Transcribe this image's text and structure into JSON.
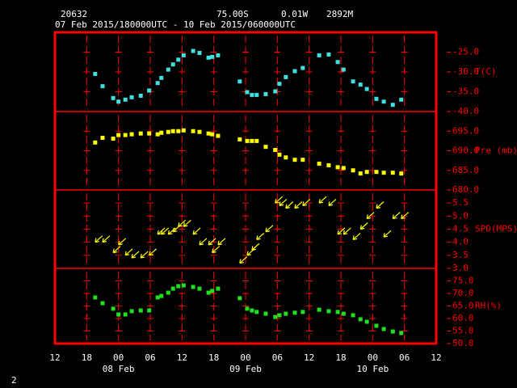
{
  "header": {
    "station": "20632",
    "latitude": "75.00S",
    "longitude": "0.01W",
    "elevation": "2892M",
    "period": "07 Feb 2015/180000UTC - 10 Feb 2015/060000UTC"
  },
  "page_number": "2",
  "chart_data": [
    {
      "type": "scatter",
      "ylabel": "T(C)",
      "color": "#40e0e0",
      "x": [
        7.6,
        9,
        11,
        12,
        13.3,
        14.5,
        16.2,
        17.8,
        19.4,
        20.1,
        21.4,
        22.3,
        23.3,
        24.3,
        26.1,
        27.3,
        29,
        29.7,
        30.8,
        34.9,
        36.3,
        37.2,
        38.1,
        39.8,
        41.6,
        42.4,
        43.6,
        45.3,
        46.8,
        49.9,
        51.7,
        53.4,
        54.5,
        56.3,
        57.7,
        58.9,
        60.7,
        62.1,
        63.8,
        65.4
      ],
      "values": [
        -30.5,
        -33.6,
        -36.6,
        -37.5,
        -37.0,
        -36.4,
        -36.0,
        -34.7,
        -32.8,
        -31.5,
        -29.4,
        -28.1,
        -26.9,
        -25.8,
        -24.7,
        -25.2,
        -26.4,
        -26.2,
        -25.8,
        -32.4,
        -35.1,
        -35.8,
        -35.8,
        -35.6,
        -34.9,
        -33.0,
        -31.3,
        -29.8,
        -29.0,
        -25.8,
        -25.6,
        -27.5,
        -29.4,
        -32.4,
        -33.2,
        -34.3,
        -36.8,
        -37.5,
        -38.3,
        -37.0
      ],
      "ylim": [
        -40,
        -20
      ],
      "yticks": [
        {
          "value": -25,
          "label": "-25.0"
        },
        {
          "value": -30,
          "label": "-30.0"
        },
        {
          "value": -35,
          "label": "-35.0"
        },
        {
          "value": -40,
          "label": "-40.0"
        }
      ]
    },
    {
      "type": "scatter",
      "ylabel": "Pre (mb)",
      "color": "#ffff00",
      "x": [
        7.6,
        9,
        11,
        12,
        13.3,
        14.5,
        16.2,
        17.8,
        19.4,
        20.1,
        21.4,
        22.3,
        23.3,
        24.3,
        26.1,
        27.3,
        29,
        29.7,
        30.8,
        34.9,
        36.3,
        37.2,
        38.1,
        39.8,
        41.6,
        42.4,
        43.6,
        45.3,
        46.8,
        49.9,
        51.7,
        53.4,
        54.5,
        56.3,
        57.7,
        58.9,
        60.7,
        62.1,
        63.8,
        65.4
      ],
      "values": [
        692.1,
        693.3,
        693.1,
        694.0,
        694.0,
        694.2,
        694.4,
        694.4,
        694.2,
        694.6,
        694.8,
        695.0,
        695.0,
        695.2,
        695.0,
        694.8,
        694.4,
        694.2,
        693.8,
        692.9,
        692.5,
        692.5,
        692.5,
        691.0,
        690.2,
        689.0,
        688.3,
        687.7,
        687.7,
        686.7,
        686.3,
        685.8,
        685.6,
        685.0,
        684.2,
        684.6,
        684.6,
        684.4,
        684.4,
        684.2
      ],
      "ylim": [
        680,
        700
      ],
      "yticks": [
        {
          "value": 695,
          "label": "695.0"
        },
        {
          "value": 690,
          "label": "690.0"
        },
        {
          "value": 685,
          "label": "685.0"
        },
        {
          "value": 680,
          "label": "680.0"
        }
      ]
    },
    {
      "type": "vector",
      "ylabel": "SPD(MPS)",
      "color": "#ffff00",
      "x": [
        7.6,
        9,
        11,
        12,
        13.3,
        14.5,
        16.2,
        17.8,
        19.4,
        20.1,
        21.4,
        22.3,
        23.3,
        24.3,
        26.1,
        27.3,
        29,
        29.7,
        30.8,
        34.9,
        36.3,
        37.2,
        38.1,
        39.8,
        41.6,
        42.4,
        43.6,
        45.3,
        46.8,
        49.9,
        51.7,
        53.4,
        54.5,
        56.3,
        57.7,
        58.9,
        60.7,
        62.1,
        63.8,
        65.4
      ],
      "values": [
        4.0,
        4.0,
        3.6,
        3.9,
        3.5,
        3.4,
        3.4,
        3.5,
        4.3,
        4.3,
        4.3,
        4.4,
        4.6,
        4.6,
        4.3,
        3.9,
        3.9,
        3.6,
        3.9,
        3.2,
        3.5,
        3.7,
        4.1,
        4.4,
        5.5,
        5.4,
        5.3,
        5.3,
        5.4,
        5.5,
        5.4,
        4.3,
        4.3,
        4.1,
        4.5,
        4.9,
        5.3,
        4.2,
        4.9,
        4.9
      ],
      "ylim": [
        3,
        6
      ],
      "yticks": [
        {
          "value": 5.5,
          "label": "5.5"
        },
        {
          "value": 5,
          "label": "5.0"
        },
        {
          "value": 4.5,
          "label": "4.5"
        },
        {
          "value": 4,
          "label": "4.0"
        },
        {
          "value": 3.5,
          "label": "3.5"
        },
        {
          "value": 3,
          "label": "3.0"
        }
      ]
    },
    {
      "type": "scatter",
      "ylabel": "RH(%)",
      "color": "#20e020",
      "x": [
        7.6,
        9,
        11,
        12,
        13.3,
        14.5,
        16.2,
        17.8,
        19.4,
        20.1,
        21.4,
        22.3,
        23.3,
        24.3,
        26.1,
        27.3,
        29,
        29.7,
        30.8,
        34.9,
        36.3,
        37.2,
        38.1,
        39.8,
        41.6,
        42.4,
        43.6,
        45.3,
        46.8,
        49.9,
        51.7,
        53.4,
        54.5,
        56.3,
        57.7,
        58.9,
        60.7,
        62.1,
        63.8,
        65.4
      ],
      "values": [
        68.4,
        66.1,
        63.9,
        61.6,
        61.6,
        62.9,
        63.2,
        63.2,
        68.4,
        69.0,
        70.3,
        71.9,
        72.9,
        73.2,
        72.6,
        71.9,
        70.3,
        71.0,
        71.9,
        68.1,
        63.9,
        63.2,
        62.6,
        61.9,
        60.6,
        61.3,
        61.9,
        62.3,
        62.6,
        63.5,
        62.9,
        62.6,
        61.9,
        61.3,
        59.7,
        58.7,
        57.1,
        55.8,
        54.8,
        54.2
      ],
      "ylim": [
        50,
        80
      ],
      "yticks": [
        {
          "value": 75,
          "label": "75.0"
        },
        {
          "value": 70,
          "label": "70.0"
        },
        {
          "value": 65,
          "label": "65.0"
        },
        {
          "value": 60,
          "label": "60.0"
        },
        {
          "value": 55,
          "label": "55.0"
        },
        {
          "value": 50,
          "label": "50.0"
        }
      ],
      "xlim": [
        0,
        72
      ],
      "xticks": [
        {
          "value": 0,
          "label": "12"
        },
        {
          "value": 6,
          "label": "18"
        },
        {
          "value": 12,
          "label": "00"
        },
        {
          "value": 18,
          "label": "06"
        },
        {
          "value": 24,
          "label": "12"
        },
        {
          "value": 30,
          "label": "18"
        },
        {
          "value": 36,
          "label": "00"
        },
        {
          "value": 42,
          "label": "06"
        },
        {
          "value": 48,
          "label": "12"
        },
        {
          "value": 54,
          "label": "18"
        },
        {
          "value": 60,
          "label": "00"
        },
        {
          "value": 66,
          "label": "06"
        },
        {
          "value": 72,
          "label": "12"
        }
      ],
      "date_labels": [
        {
          "value": 12,
          "label": "08 Feb"
        },
        {
          "value": 36,
          "label": "09 Feb"
        },
        {
          "value": 60,
          "label": "10 Feb"
        }
      ]
    }
  ]
}
